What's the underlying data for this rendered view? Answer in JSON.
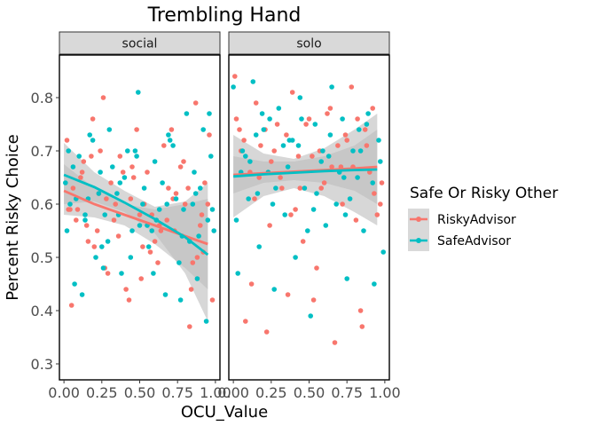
{
  "chart_data": {
    "type": "scatter",
    "title": "Trembling Hand",
    "xlabel": "OCU_Value",
    "ylabel": "Percent Risky Choice",
    "xlim": [
      -0.03,
      1.03
    ],
    "ylim": [
      0.27,
      0.88
    ],
    "x_ticks": [
      0.0,
      0.25,
      0.5,
      0.75,
      1.0
    ],
    "x_tick_labels": [
      "0.00",
      "0.25",
      "0.50",
      "0.75",
      "1.00"
    ],
    "y_ticks": [
      0.3,
      0.4,
      0.5,
      0.6,
      0.7,
      0.8
    ],
    "y_tick_labels": [
      "0.3",
      "0.4",
      "0.5",
      "0.6",
      "0.7",
      "0.8"
    ],
    "grid": false,
    "legend": {
      "title": "Safe Or Risky Other",
      "position": "right",
      "entries": [
        "RiskyAdvisor",
        "SafeAdvisor"
      ]
    },
    "colors": {
      "RiskyAdvisor": "#f8766d",
      "SafeAdvisor": "#00bfc4",
      "ribbon": "#bdbdbd",
      "strip": "#d9d9d9"
    },
    "panels": [
      {
        "name": "social",
        "fits": [
          {
            "series": "RiskyAdvisor",
            "x": [
              0.0,
              0.2,
              0.4,
              0.6,
              0.8,
              0.95
            ],
            "y": [
              0.625,
              0.6,
              0.58,
              0.56,
              0.54,
              0.525
            ],
            "lo": [
              0.58,
              0.575,
              0.56,
              0.525,
              0.48,
              0.44
            ],
            "hi": [
              0.675,
              0.63,
              0.6,
              0.59,
              0.6,
              0.61
            ]
          },
          {
            "series": "SafeAdvisor",
            "x": [
              0.0,
              0.2,
              0.4,
              0.6,
              0.8,
              0.95
            ],
            "y": [
              0.655,
              0.632,
              0.603,
              0.572,
              0.538,
              0.505
            ],
            "lo": [
              0.6,
              0.605,
              0.585,
              0.545,
              0.47,
              0.38
            ],
            "hi": [
              0.715,
              0.66,
              0.625,
              0.595,
              0.605,
              0.64
            ]
          }
        ],
        "series": [
          {
            "name": "RiskyAdvisor",
            "x": [
              0.02,
              0.05,
              0.09,
              0.12,
              0.16,
              0.19,
              0.23,
              0.26,
              0.29,
              0.33,
              0.37,
              0.41,
              0.44,
              0.48,
              0.52,
              0.55,
              0.58,
              0.62,
              0.66,
              0.69,
              0.73,
              0.77,
              0.8,
              0.84,
              0.87,
              0.9,
              0.93,
              0.96,
              0.98,
              0.06,
              0.15,
              0.24,
              0.34,
              0.46,
              0.57,
              0.68,
              0.79,
              0.88,
              0.03,
              0.13,
              0.22,
              0.31,
              0.43,
              0.53,
              0.64,
              0.74,
              0.85,
              0.95,
              0.08,
              0.18,
              0.27,
              0.39,
              0.5,
              0.6,
              0.71,
              0.82,
              0.92,
              0.04,
              0.11,
              0.2,
              0.28,
              0.36,
              0.45,
              0.51,
              0.63,
              0.72,
              0.83,
              0.91
            ],
            "y": [
              0.72,
              0.41,
              0.59,
              0.66,
              0.53,
              0.76,
              0.62,
              0.8,
              0.47,
              0.57,
              0.69,
              0.44,
              0.61,
              0.74,
              0.52,
              0.66,
              0.58,
              0.49,
              0.71,
              0.63,
              0.55,
              0.67,
              0.6,
              0.44,
              0.79,
              0.56,
              0.64,
              0.73,
              0.42,
              0.63,
              0.56,
              0.7,
              0.6,
              0.65,
              0.51,
              0.57,
              0.68,
              0.5,
              0.59,
              0.68,
              0.55,
              0.64,
              0.42,
              0.6,
              0.55,
              0.62,
              0.49,
              0.6,
              0.57,
              0.69,
              0.48,
              0.66,
              0.58,
              0.53,
              0.74,
              0.63,
              0.51,
              0.59,
              0.65,
              0.52,
              0.61,
              0.54,
              0.67,
              0.46,
              0.56,
              0.61,
              0.37,
              0.58
            ]
          },
          {
            "name": "SafeAdvisor",
            "x": [
              0.01,
              0.04,
              0.07,
              0.1,
              0.14,
              0.17,
              0.21,
              0.24,
              0.27,
              0.3,
              0.35,
              0.38,
              0.42,
              0.45,
              0.49,
              0.53,
              0.56,
              0.6,
              0.63,
              0.67,
              0.7,
              0.74,
              0.78,
              0.81,
              0.85,
              0.88,
              0.92,
              0.95,
              0.97,
              0.99,
              0.06,
              0.16,
              0.25,
              0.36,
              0.47,
              0.55,
              0.65,
              0.76,
              0.86,
              0.94,
              0.02,
              0.12,
              0.23,
              0.32,
              0.44,
              0.52,
              0.61,
              0.72,
              0.83,
              0.9,
              0.08,
              0.19,
              0.29,
              0.4,
              0.5,
              0.59,
              0.69,
              0.79,
              0.89,
              0.96,
              0.03,
              0.14,
              0.26,
              0.37,
              0.48,
              0.58,
              0.68,
              0.77,
              0.87,
              0.98
            ],
            "y": [
              0.64,
              0.6,
              0.45,
              0.69,
              0.57,
              0.73,
              0.5,
              0.66,
              0.58,
              0.74,
              0.62,
              0.47,
              0.7,
              0.55,
              0.81,
              0.63,
              0.52,
              0.68,
              0.59,
              0.43,
              0.72,
              0.61,
              0.54,
              0.77,
              0.6,
              0.46,
              0.74,
              0.57,
              0.69,
              0.55,
              0.67,
              0.61,
              0.52,
              0.58,
              0.7,
              0.56,
              0.64,
              0.49,
              0.66,
              0.38,
              0.55,
              0.43,
              0.62,
              0.67,
              0.5,
              0.6,
              0.57,
              0.71,
              0.53,
              0.63,
              0.61,
              0.72,
              0.53,
              0.65,
              0.56,
              0.47,
              0.73,
              0.59,
              0.54,
              0.77,
              0.7,
              0.58,
              0.48,
              0.64,
              0.69,
              0.55,
              0.6,
              0.42,
              0.62,
              0.59
            ]
          }
        ]
      },
      {
        "name": "solo",
        "fits": [
          {
            "series": "RiskyAdvisor",
            "x": [
              0.0,
              0.2,
              0.4,
              0.6,
              0.8,
              0.95
            ],
            "y": [
              0.655,
              0.658,
              0.661,
              0.664,
              0.667,
              0.67
            ],
            "lo": [
              0.62,
              0.64,
              0.645,
              0.64,
              0.625,
              0.6
            ],
            "hi": [
              0.69,
              0.68,
              0.68,
              0.69,
              0.71,
              0.74
            ]
          },
          {
            "series": "SafeAdvisor",
            "x": [
              0.0,
              0.2,
              0.4,
              0.6,
              0.8,
              0.95
            ],
            "y": [
              0.652,
              0.656,
              0.659,
              0.662,
              0.664,
              0.665
            ],
            "lo": [
              0.575,
              0.615,
              0.63,
              0.615,
              0.585,
              0.56
            ],
            "hi": [
              0.73,
              0.695,
              0.685,
              0.705,
              0.74,
              0.77
            ]
          }
        ],
        "series": [
          {
            "name": "RiskyAdvisor",
            "x": [
              0.01,
              0.04,
              0.08,
              0.11,
              0.15,
              0.18,
              0.22,
              0.25,
              0.29,
              0.32,
              0.36,
              0.39,
              0.43,
              0.46,
              0.5,
              0.53,
              0.57,
              0.6,
              0.64,
              0.67,
              0.71,
              0.74,
              0.78,
              0.81,
              0.85,
              0.88,
              0.92,
              0.95,
              0.98,
              0.05,
              0.14,
              0.24,
              0.35,
              0.44,
              0.55,
              0.65,
              0.75,
              0.84,
              0.93,
              0.02,
              0.12,
              0.21,
              0.31,
              0.41,
              0.52,
              0.62,
              0.72,
              0.82,
              0.9,
              0.07,
              0.17,
              0.27,
              0.38,
              0.48,
              0.58,
              0.69,
              0.79,
              0.87,
              0.97
            ],
            "y": [
              0.84,
              0.74,
              0.38,
              0.66,
              0.79,
              0.71,
              0.36,
              0.68,
              0.75,
              0.63,
              0.43,
              0.81,
              0.69,
              0.53,
              0.76,
              0.42,
              0.7,
              0.64,
              0.78,
              0.34,
              0.67,
              0.73,
              0.82,
              0.57,
              0.37,
              0.71,
              0.78,
              0.58,
              0.64,
              0.7,
              0.61,
              0.56,
              0.73,
              0.63,
              0.48,
              0.67,
              0.72,
              0.4,
              0.62,
              0.76,
              0.45,
              0.74,
              0.65,
              0.59,
              0.69,
              0.77,
              0.6,
              0.76,
              0.66,
              0.72,
              0.65,
              0.7,
              0.58,
              0.75,
              0.63,
              0.71,
              0.67,
              0.74,
              0.6
            ]
          },
          {
            "name": "SafeAdvisor",
            "x": [
              0.0,
              0.03,
              0.06,
              0.1,
              0.13,
              0.17,
              0.2,
              0.23,
              0.27,
              0.3,
              0.34,
              0.37,
              0.41,
              0.44,
              0.47,
              0.51,
              0.54,
              0.58,
              0.61,
              0.65,
              0.68,
              0.72,
              0.75,
              0.79,
              0.82,
              0.86,
              0.89,
              0.93,
              0.96,
              0.99,
              0.05,
              0.15,
              0.26,
              0.33,
              0.45,
              0.55,
              0.63,
              0.74,
              0.83,
              0.92,
              0.02,
              0.11,
              0.19,
              0.28,
              0.39,
              0.49,
              0.59,
              0.7,
              0.77,
              0.88,
              0.08,
              0.16,
              0.24,
              0.36,
              0.43,
              0.53,
              0.64,
              0.73,
              0.84,
              0.97
            ],
            "y": [
              0.82,
              0.47,
              0.7,
              0.61,
              0.83,
              0.52,
              0.74,
              0.66,
              0.44,
              0.78,
              0.58,
              0.72,
              0.5,
              0.8,
              0.63,
              0.39,
              0.75,
              0.68,
              0.56,
              0.82,
              0.6,
              0.76,
              0.46,
              0.7,
              0.65,
              0.55,
              0.77,
              0.45,
              0.72,
              0.51,
              0.66,
              0.73,
              0.6,
              0.71,
              0.76,
              0.62,
              0.69,
              0.58,
              0.74,
              0.64,
              0.57,
              0.68,
              0.77,
              0.63,
              0.72,
              0.55,
              0.7,
              0.66,
              0.61,
              0.75,
              0.69,
              0.62,
              0.76,
              0.67,
              0.71,
              0.59,
              0.73,
              0.65,
              0.7,
              0.68
            ]
          }
        ]
      }
    ]
  }
}
